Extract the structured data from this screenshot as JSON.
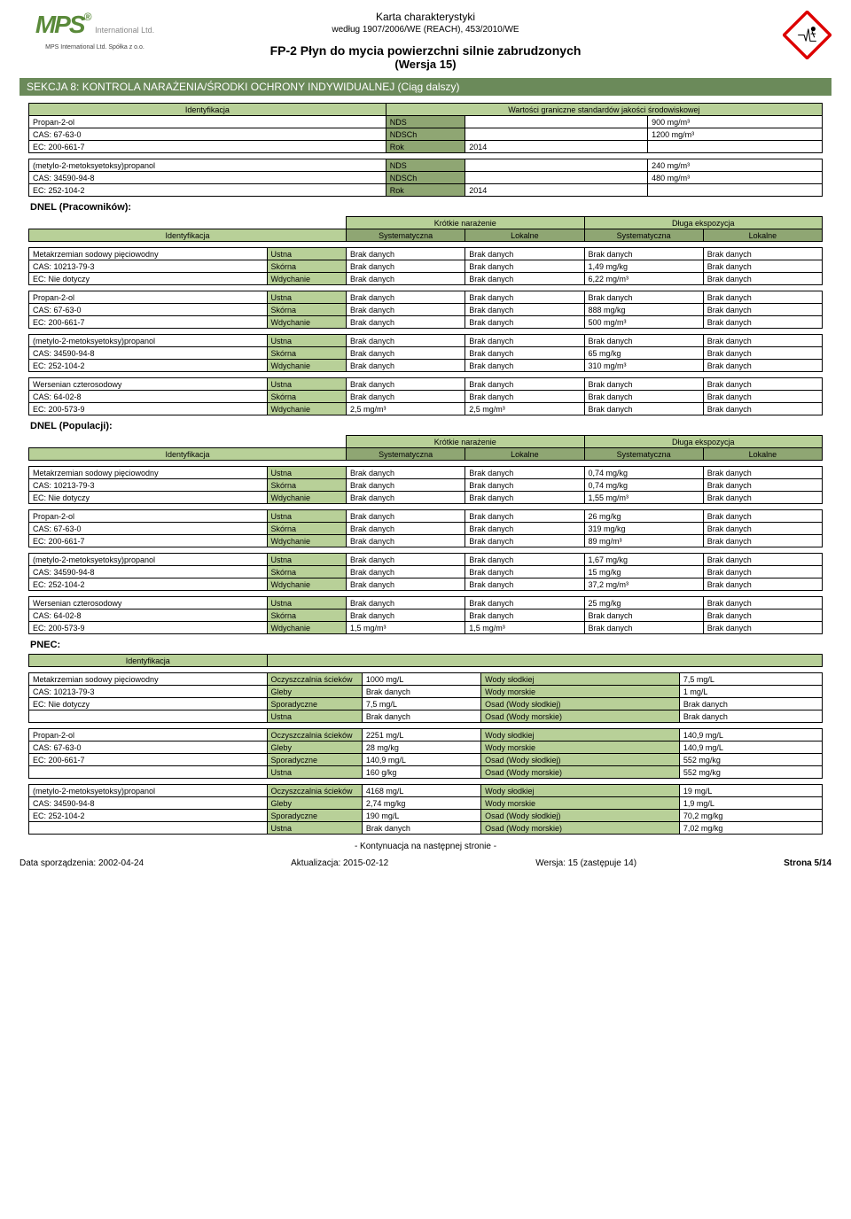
{
  "header": {
    "logo_text": "MPS",
    "logo_tm": "®",
    "logo_intl": "International Ltd.",
    "logo_company": "MPS International Ltd. Spółka z o.o.",
    "doc_title": "Karta charakterystyki",
    "doc_sub": "według 1907/2006/WE (REACH), 453/2010/WE",
    "product": "FP-2 Płyn do mycia powierzchni silnie zabrudzonych",
    "version": "(Wersja 15)"
  },
  "section_title": "SEKCJA 8: KONTROLA NARAŻENIA/ŚRODKI OCHRONY INDYWIDUALNEJ (Ciąg dalszy)",
  "limits_table": {
    "col_id": "Identyfikacja",
    "col_vals": "Wartości graniczne standardów jakości środowiskowej",
    "rows1": [
      [
        "Propan-2-ol",
        "NDS",
        "",
        "900 mg/m³"
      ],
      [
        "CAS: 67-63-0",
        "NDSCh",
        "",
        "1200 mg/m³"
      ],
      [
        "EC: 200-661-7",
        "Rok",
        "2014",
        ""
      ]
    ],
    "rows2": [
      [
        "(metylo-2-metoksyetoksy)propanol",
        "NDS",
        "",
        "240 mg/m³"
      ],
      [
        "CAS: 34590-94-8",
        "NDSCh",
        "",
        "480 mg/m³"
      ],
      [
        "EC: 252-104-2",
        "Rok",
        "2014",
        ""
      ]
    ]
  },
  "dnel_workers_title": "DNEL (Pracowników):",
  "dnel_pop_title": "DNEL (Populacji):",
  "pnec_title": "PNEC:",
  "dnel_headers": {
    "short": "Krótkie narażenie",
    "long": "Długa ekspozycja",
    "id": "Identyfikacja",
    "sys": "Systematyczna",
    "loc": "Lokalne"
  },
  "dnel_workers": [
    {
      "id": [
        "Metakrzemian sodowy pięciowodny",
        "CAS: 10213-79-3",
        "EC: Nie dotyczy"
      ],
      "rows": [
        [
          "Ustna",
          "Brak danych",
          "Brak danych",
          "Brak danych",
          "Brak danych"
        ],
        [
          "Skórna",
          "Brak danych",
          "Brak danych",
          "1,49 mg/kg",
          "Brak danych"
        ],
        [
          "Wdychanie",
          "Brak danych",
          "Brak danych",
          "6,22 mg/m³",
          "Brak danych"
        ]
      ]
    },
    {
      "id": [
        "Propan-2-ol",
        "CAS: 67-63-0",
        "EC: 200-661-7"
      ],
      "rows": [
        [
          "Ustna",
          "Brak danych",
          "Brak danych",
          "Brak danych",
          "Brak danych"
        ],
        [
          "Skórna",
          "Brak danych",
          "Brak danych",
          "888 mg/kg",
          "Brak danych"
        ],
        [
          "Wdychanie",
          "Brak danych",
          "Brak danych",
          "500 mg/m³",
          "Brak danych"
        ]
      ]
    },
    {
      "id": [
        "(metylo-2-metoksyetoksy)propanol",
        "CAS: 34590-94-8",
        "EC: 252-104-2"
      ],
      "rows": [
        [
          "Ustna",
          "Brak danych",
          "Brak danych",
          "Brak danych",
          "Brak danych"
        ],
        [
          "Skórna",
          "Brak danych",
          "Brak danych",
          "65 mg/kg",
          "Brak danych"
        ],
        [
          "Wdychanie",
          "Brak danych",
          "Brak danych",
          "310 mg/m³",
          "Brak danych"
        ]
      ]
    },
    {
      "id": [
        "Wersenian czterosodowy",
        "CAS: 64-02-8",
        "EC: 200-573-9"
      ],
      "rows": [
        [
          "Ustna",
          "Brak danych",
          "Brak danych",
          "Brak danych",
          "Brak danych"
        ],
        [
          "Skórna",
          "Brak danych",
          "Brak danych",
          "Brak danych",
          "Brak danych"
        ],
        [
          "Wdychanie",
          "2,5 mg/m³",
          "2,5 mg/m³",
          "Brak danych",
          "Brak danych"
        ]
      ]
    }
  ],
  "dnel_pop": [
    {
      "id": [
        "Metakrzemian sodowy pięciowodny",
        "CAS: 10213-79-3",
        "EC: Nie dotyczy"
      ],
      "rows": [
        [
          "Ustna",
          "Brak danych",
          "Brak danych",
          "0,74 mg/kg",
          "Brak danych"
        ],
        [
          "Skórna",
          "Brak danych",
          "Brak danych",
          "0,74 mg/kg",
          "Brak danych"
        ],
        [
          "Wdychanie",
          "Brak danych",
          "Brak danych",
          "1,55 mg/m³",
          "Brak danych"
        ]
      ]
    },
    {
      "id": [
        "Propan-2-ol",
        "CAS: 67-63-0",
        "EC: 200-661-7"
      ],
      "rows": [
        [
          "Ustna",
          "Brak danych",
          "Brak danych",
          "26 mg/kg",
          "Brak danych"
        ],
        [
          "Skórna",
          "Brak danych",
          "Brak danych",
          "319 mg/kg",
          "Brak danych"
        ],
        [
          "Wdychanie",
          "Brak danych",
          "Brak danych",
          "89 mg/m³",
          "Brak danych"
        ]
      ]
    },
    {
      "id": [
        "(metylo-2-metoksyetoksy)propanol",
        "CAS: 34590-94-8",
        "EC: 252-104-2"
      ],
      "rows": [
        [
          "Ustna",
          "Brak danych",
          "Brak danych",
          "1,67 mg/kg",
          "Brak danych"
        ],
        [
          "Skórna",
          "Brak danych",
          "Brak danych",
          "15 mg/kg",
          "Brak danych"
        ],
        [
          "Wdychanie",
          "Brak danych",
          "Brak danych",
          "37,2 mg/m³",
          "Brak danych"
        ]
      ]
    },
    {
      "id": [
        "Wersenian czterosodowy",
        "CAS: 64-02-8",
        "EC: 200-573-9"
      ],
      "rows": [
        [
          "Ustna",
          "Brak danych",
          "Brak danych",
          "25 mg/kg",
          "Brak danych"
        ],
        [
          "Skórna",
          "Brak danych",
          "Brak danych",
          "Brak danych",
          "Brak danych"
        ],
        [
          "Wdychanie",
          "1,5 mg/m³",
          "1,5 mg/m³",
          "Brak danych",
          "Brak danych"
        ]
      ]
    }
  ],
  "pnec": [
    {
      "id": [
        "Metakrzemian sodowy pięciowodny",
        "CAS: 10213-79-3",
        "EC: Nie dotyczy",
        ""
      ],
      "rows": [
        [
          "Oczyszczalnia ścieków",
          "1000 mg/L",
          "Wody słodkiej",
          "7,5 mg/L"
        ],
        [
          "Gleby",
          "Brak danych",
          "Wody morskie",
          "1 mg/L"
        ],
        [
          "Sporadyczne",
          "7,5 mg/L",
          "Osad (Wody słodkiej)",
          "Brak danych"
        ],
        [
          "Ustna",
          "Brak danych",
          "Osad (Wody morskie)",
          "Brak danych"
        ]
      ]
    },
    {
      "id": [
        "Propan-2-ol",
        "CAS: 67-63-0",
        "EC: 200-661-7",
        ""
      ],
      "rows": [
        [
          "Oczyszczalnia ścieków",
          "2251 mg/L",
          "Wody słodkiej",
          "140,9 mg/L"
        ],
        [
          "Gleby",
          "28 mg/kg",
          "Wody morskie",
          "140,9 mg/L"
        ],
        [
          "Sporadyczne",
          "140,9 mg/L",
          "Osad (Wody słodkiej)",
          "552 mg/kg"
        ],
        [
          "Ustna",
          "160 g/kg",
          "Osad (Wody morskie)",
          "552 mg/kg"
        ]
      ]
    },
    {
      "id": [
        "(metylo-2-metoksyetoksy)propanol",
        "CAS: 34590-94-8",
        "EC: 252-104-2",
        ""
      ],
      "rows": [
        [
          "Oczyszczalnia ścieków",
          "4168 mg/L",
          "Wody słodkiej",
          "19 mg/L"
        ],
        [
          "Gleby",
          "2,74 mg/kg",
          "Wody morskie",
          "1,9 mg/L"
        ],
        [
          "Sporadyczne",
          "190 mg/L",
          "Osad (Wody słodkiej)",
          "70,2 mg/kg"
        ],
        [
          "Ustna",
          "Brak danych",
          "Osad (Wody morskie)",
          "7,02 mg/kg"
        ]
      ]
    }
  ],
  "footer": {
    "cont": "- Kontynuacja na następnej stronie -",
    "date1": "Data sporządzenia: 2002-04-24",
    "date2": "Aktualizacja: 2015-02-12",
    "ver": "Wersja: 15 (zastępuje 14)",
    "page": "Strona 5/14"
  },
  "colors": {
    "section_bg": "#6b8a5a",
    "header_green": "#b8d098",
    "header_olive": "#8fa673"
  }
}
